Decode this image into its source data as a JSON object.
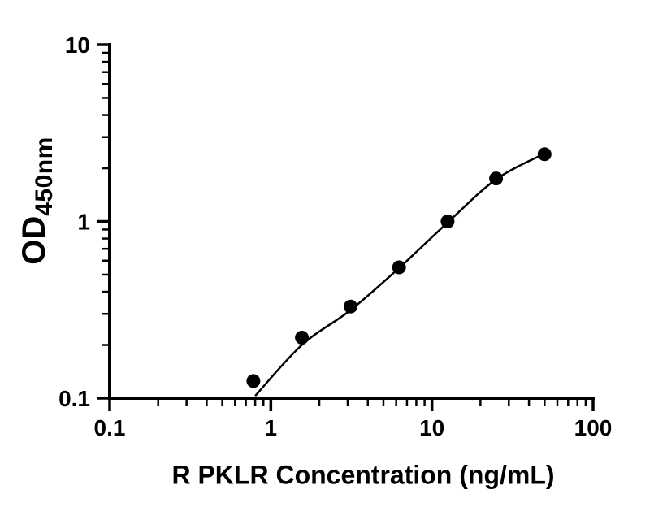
{
  "figure": {
    "background": "#ffffff"
  },
  "chart_data": {
    "type": "scatter",
    "title": "",
    "xlabel": "R PKLR Concentration (ng/mL)",
    "ylabel_main": "OD",
    "ylabel_sub": "450nm",
    "x_scale": "log",
    "y_scale": "log",
    "xlim": [
      0.1,
      100
    ],
    "ylim": [
      0.1,
      10
    ],
    "x_major_ticks": [
      0.1,
      1,
      10,
      100
    ],
    "x_tick_labels": [
      "0.1",
      "1",
      "10",
      "100"
    ],
    "y_major_ticks": [
      0.1,
      1,
      10
    ],
    "y_tick_labels": [
      "0.1",
      "1",
      "10"
    ],
    "minor_ticks": "log-decades",
    "grid": false,
    "legend": false,
    "axis_color": "#000000",
    "marker_radius_px": 8.5,
    "series": [
      {
        "marker": "filled-circle",
        "color": "#000000",
        "x": [
          0.78,
          1.56,
          3.125,
          6.25,
          12.5,
          25,
          50
        ],
        "y": [
          0.125,
          0.22,
          0.33,
          0.55,
          1.0,
          1.75,
          2.4
        ]
      }
    ],
    "fit_curve": {
      "color": "#000000",
      "x": [
        0.8,
        1.56,
        3.125,
        6.25,
        12.5,
        25,
        50
      ],
      "y": [
        0.103,
        0.2,
        0.315,
        0.545,
        0.985,
        1.73,
        2.42
      ]
    }
  }
}
